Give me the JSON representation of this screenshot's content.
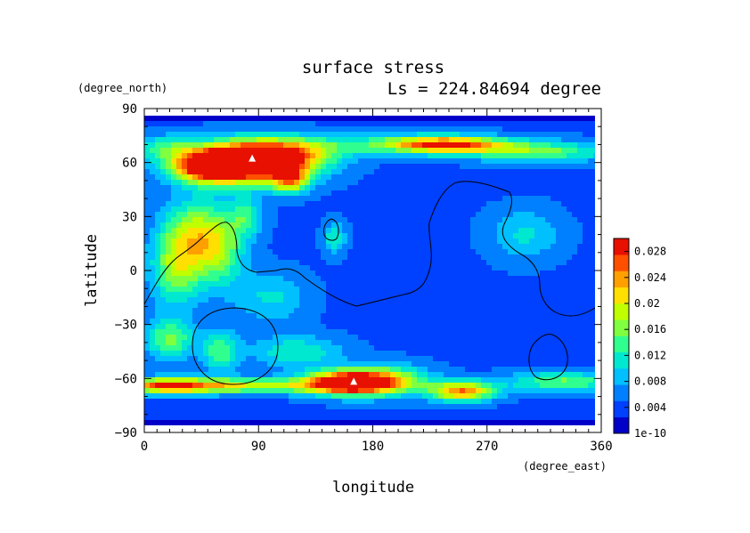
{
  "chart_data": {
    "type": "heatmap",
    "title": "surface stress",
    "subtitle": "Ls = 224.84694 degree",
    "xlabel": "longitude",
    "ylabel": "latitude",
    "x_units": "(degree_east)",
    "y_units": "(degree_north)",
    "xlim": [
      0,
      360
    ],
    "ylim": [
      -90,
      90
    ],
    "x_ticks": [
      "0",
      "90",
      "180",
      "270",
      "360"
    ],
    "x_tick_values": [
      0,
      90,
      180,
      270,
      360
    ],
    "y_ticks": [
      "90",
      "60",
      "30",
      "0",
      "−30",
      "−60",
      "−90"
    ],
    "y_tick_values": [
      90,
      60,
      30,
      0,
      -30,
      -60,
      -90
    ],
    "colorbar": {
      "min": 1e-10,
      "max": 0.03,
      "labels": [
        "0.028",
        "0.024",
        "0.02",
        "0.016",
        "0.012",
        "0.008",
        "0.004",
        "1e-10"
      ],
      "label_values": [
        0.028,
        0.024,
        0.02,
        0.016,
        0.012,
        0.008,
        0.004,
        0
      ],
      "colormap": "jet",
      "colors": [
        "#0000c8",
        "#0040ff",
        "#0080ff",
        "#00c0ff",
        "#00e8d0",
        "#30ff90",
        "#80ff40",
        "#c0ff00",
        "#ffe000",
        "#ffa000",
        "#ff5000",
        "#e81000"
      ]
    },
    "features": [
      {
        "lon": 85,
        "lat": 62,
        "value": 0.03,
        "note": "peak"
      },
      {
        "lon": 165,
        "lat": -62,
        "value": 0.03,
        "note": "peak"
      }
    ],
    "grid": false
  }
}
